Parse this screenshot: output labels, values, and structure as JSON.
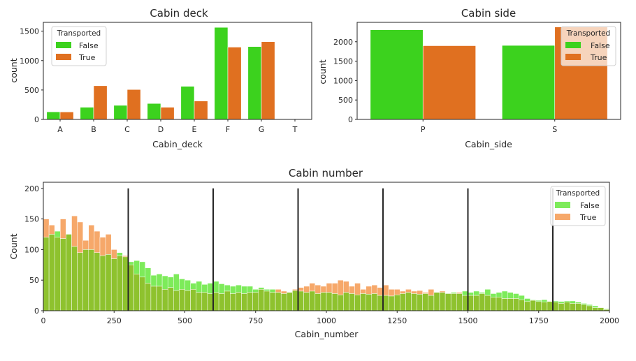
{
  "chart_data": [
    {
      "type": "bar",
      "title": "Cabin deck",
      "xlabel": "Cabin_deck",
      "ylabel": "count",
      "categories": [
        "A",
        "B",
        "C",
        "D",
        "E",
        "F",
        "G",
        "T"
      ],
      "series": [
        {
          "name": "False",
          "values": [
            129,
            207,
            239,
            271,
            563,
            1565,
            1238,
            4
          ]
        },
        {
          "name": "True",
          "values": [
            127,
            572,
            508,
            207,
            313,
            1229,
            1321,
            1
          ]
        }
      ],
      "ylim": [
        0,
        1650
      ],
      "yticks": [
        0,
        500,
        1000,
        1500
      ],
      "legend": {
        "title": "Transported",
        "position": "top-left"
      },
      "colors": {
        "False": "#3cd21e",
        "True": "#e07020"
      },
      "grid": false
    },
    {
      "type": "bar",
      "title": "Cabin side",
      "xlabel": "Cabin_side",
      "ylabel": "count",
      "categories": [
        "P",
        "S"
      ],
      "series": [
        {
          "name": "False",
          "values": [
            2308,
            1906
          ]
        },
        {
          "name": "True",
          "values": [
            1898,
            2380
          ]
        }
      ],
      "ylim": [
        0,
        2500
      ],
      "yticks": [
        0,
        500,
        1000,
        1500,
        2000
      ],
      "legend": {
        "title": "Transported",
        "position": "top-right"
      },
      "colors": {
        "False": "#3cd21e",
        "True": "#e07020"
      },
      "grid": false
    },
    {
      "type": "histogram",
      "title": "Cabin number",
      "xlabel": "Cabin_number",
      "ylabel": "Count",
      "bin_start": 0,
      "bin_width": 20,
      "xlim": [
        0,
        2000
      ],
      "xticks": [
        0,
        250,
        500,
        750,
        1000,
        1250,
        1500,
        1750,
        2000
      ],
      "ylim": [
        0,
        210
      ],
      "yticks": [
        0,
        50,
        100,
        150,
        200
      ],
      "series": [
        {
          "name": "False",
          "values": [
            120,
            125,
            130,
            118,
            125,
            105,
            95,
            100,
            100,
            95,
            90,
            92,
            85,
            95,
            88,
            80,
            82,
            80,
            70,
            58,
            60,
            57,
            55,
            60,
            52,
            50,
            45,
            48,
            43,
            45,
            48,
            44,
            42,
            40,
            42,
            40,
            40,
            35,
            38,
            35,
            35,
            30,
            28,
            30,
            33,
            32,
            30,
            32,
            28,
            30,
            30,
            28,
            26,
            30,
            28,
            26,
            28,
            27,
            28,
            25,
            25,
            24,
            26,
            28,
            30,
            28,
            27,
            28,
            25,
            30,
            30,
            28,
            30,
            28,
            32,
            30,
            32,
            30,
            35,
            28,
            30,
            32,
            30,
            28,
            25,
            20,
            18,
            17,
            18,
            15,
            16,
            15,
            16,
            16,
            14,
            12,
            10,
            8,
            5,
            3
          ]
        },
        {
          "name": "True",
          "values": [
            150,
            140,
            120,
            150,
            125,
            155,
            145,
            115,
            140,
            130,
            120,
            125,
            100,
            90,
            90,
            75,
            60,
            55,
            45,
            40,
            40,
            35,
            38,
            33,
            35,
            33,
            35,
            30,
            30,
            28,
            30,
            28,
            32,
            28,
            30,
            28,
            30,
            30,
            35,
            32,
            30,
            35,
            32,
            30,
            35,
            38,
            40,
            45,
            42,
            40,
            45,
            45,
            50,
            48,
            40,
            45,
            35,
            40,
            42,
            38,
            42,
            35,
            35,
            32,
            35,
            32,
            33,
            30,
            35,
            30,
            32,
            28,
            28,
            30,
            25,
            25,
            25,
            28,
            25,
            22,
            22,
            20,
            20,
            20,
            18,
            15,
            17,
            15,
            14,
            15,
            14,
            12,
            14,
            12,
            12,
            10,
            8,
            5,
            5,
            2
          ]
        }
      ],
      "vlines": [
        300,
        600,
        900,
        1200,
        1500,
        1800
      ],
      "legend": {
        "title": "Transported",
        "position": "top-right"
      },
      "colors": {
        "False": "#7deb5a",
        "True": "#f6a86a",
        "overlap": "#8ec22e",
        "vline": "#262626"
      },
      "grid": false
    }
  ]
}
